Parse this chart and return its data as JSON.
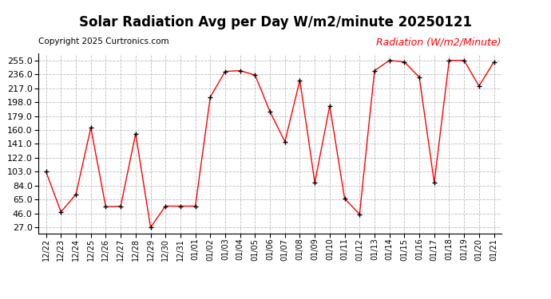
{
  "title": "Solar Radiation Avg per Day W/m2/minute 20250121",
  "copyright": "Copyright 2025 Curtronics.com",
  "legend_label": "Radiation (W/m2/Minute)",
  "dates": [
    "12/22",
    "12/23",
    "12/24",
    "12/25",
    "12/26",
    "12/27",
    "12/28",
    "12/29",
    "12/30",
    "12/31",
    "01/01",
    "01/02",
    "01/03",
    "01/04",
    "01/05",
    "01/06",
    "01/07",
    "01/08",
    "01/09",
    "01/10",
    "01/11",
    "01/12",
    "01/13",
    "01/14",
    "01/15",
    "01/16",
    "01/17",
    "01/18",
    "01/19",
    "01/20",
    "01/21"
  ],
  "values": [
    103,
    48,
    72,
    163,
    55,
    56,
    155,
    27,
    56,
    56,
    56,
    205,
    240,
    241,
    235,
    185,
    144,
    228,
    88,
    193,
    66,
    45,
    241,
    255,
    253,
    232,
    88,
    255,
    255,
    220,
    253
  ],
  "line_color": "red",
  "marker": "+",
  "marker_color": "black",
  "bg_color": "white",
  "grid_color": "#bbbbbb",
  "yticks": [
    27.0,
    46.0,
    65.0,
    84.0,
    103.0,
    122.0,
    141.0,
    160.0,
    179.0,
    198.0,
    217.0,
    236.0,
    255.0
  ],
  "ylim": [
    19,
    264
  ],
  "title_fontsize": 12,
  "legend_color": "red",
  "legend_fontsize": 9,
  "copyright_fontsize": 7.5
}
